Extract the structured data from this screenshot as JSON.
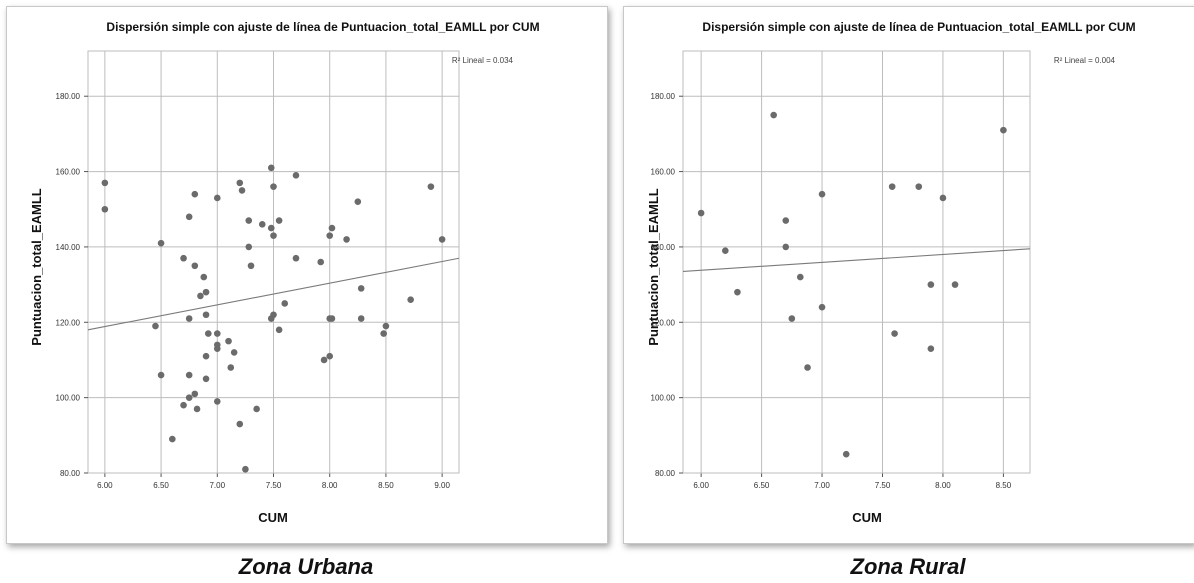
{
  "captions": [
    "Zona Urbana",
    "Zona Rural"
  ],
  "chart_data": [
    {
      "type": "scatter",
      "title": "Dispersión simple con ajuste de línea de Puntuacion_total_EAMLL por CUM",
      "xlabel": "CUM",
      "ylabel": "Puntuacion_total_EAMLL",
      "xlim": [
        5.85,
        9.15
      ],
      "ylim": [
        80,
        192
      ],
      "x_ticks": [
        "6.00",
        "6.50",
        "7.00",
        "7.50",
        "8.00",
        "8.50",
        "9.00"
      ],
      "y_ticks": [
        "80.00",
        "100.00",
        "120.00",
        "140.00",
        "160.00",
        "180.00"
      ],
      "grid": true,
      "r2_label": "R² Lineal = 0.034",
      "fit_line": {
        "x": [
          5.85,
          9.15
        ],
        "y": [
          118,
          137
        ]
      },
      "point_color": "#6b6b6b",
      "points": [
        [
          6.0,
          157
        ],
        [
          6.0,
          150
        ],
        [
          6.45,
          119
        ],
        [
          6.5,
          141
        ],
        [
          6.5,
          106
        ],
        [
          6.6,
          89
        ],
        [
          6.7,
          137
        ],
        [
          6.7,
          98
        ],
        [
          6.75,
          148
        ],
        [
          6.75,
          121
        ],
        [
          6.75,
          106
        ],
        [
          6.75,
          100
        ],
        [
          6.8,
          154
        ],
        [
          6.8,
          135
        ],
        [
          6.8,
          101
        ],
        [
          6.82,
          97
        ],
        [
          6.85,
          127
        ],
        [
          6.88,
          132
        ],
        [
          6.9,
          122
        ],
        [
          6.9,
          128
        ],
        [
          6.9,
          111
        ],
        [
          6.9,
          105
        ],
        [
          6.92,
          117
        ],
        [
          7.0,
          153
        ],
        [
          7.0,
          117
        ],
        [
          7.0,
          114
        ],
        [
          7.0,
          113
        ],
        [
          7.0,
          99
        ],
        [
          7.1,
          115
        ],
        [
          7.12,
          108
        ],
        [
          7.15,
          112
        ],
        [
          7.2,
          157
        ],
        [
          7.22,
          155
        ],
        [
          7.2,
          93
        ],
        [
          7.25,
          81
        ],
        [
          7.28,
          147
        ],
        [
          7.28,
          140
        ],
        [
          7.3,
          135
        ],
        [
          7.35,
          97
        ],
        [
          7.4,
          146
        ],
        [
          7.48,
          161
        ],
        [
          7.48,
          145
        ],
        [
          7.5,
          156
        ],
        [
          7.5,
          143
        ],
        [
          7.5,
          122
        ],
        [
          7.48,
          121
        ],
        [
          7.55,
          147
        ],
        [
          7.55,
          118
        ],
        [
          7.6,
          125
        ],
        [
          7.7,
          159
        ],
        [
          7.7,
          137
        ],
        [
          7.92,
          136
        ],
        [
          7.95,
          110
        ],
        [
          8.0,
          143
        ],
        [
          8.02,
          145
        ],
        [
          8.0,
          121
        ],
        [
          8.02,
          121
        ],
        [
          8.0,
          111
        ],
        [
          8.15,
          142
        ],
        [
          8.25,
          152
        ],
        [
          8.28,
          129
        ],
        [
          8.28,
          121
        ],
        [
          8.48,
          117
        ],
        [
          8.5,
          119
        ],
        [
          8.72,
          126
        ],
        [
          8.9,
          156
        ],
        [
          9.0,
          142
        ]
      ]
    },
    {
      "type": "scatter",
      "title": "Dispersión simple con ajuste de línea de Puntuacion_total_EAMLL por CUM",
      "xlabel": "CUM",
      "ylabel": "Puntuacion_total_EAMLL",
      "xlim": [
        5.85,
        8.72
      ],
      "ylim": [
        80,
        192
      ],
      "x_ticks": [
        "6.00",
        "6.50",
        "7.00",
        "7.50",
        "8.00",
        "8.50"
      ],
      "y_ticks": [
        "80.00",
        "100.00",
        "120.00",
        "140.00",
        "160.00",
        "180.00"
      ],
      "grid": true,
      "r2_label": "R² Lineal = 0.004",
      "fit_line": {
        "x": [
          5.85,
          8.72
        ],
        "y": [
          133.5,
          139.5
        ]
      },
      "point_color": "#6b6b6b",
      "points": [
        [
          6.0,
          149
        ],
        [
          6.2,
          139
        ],
        [
          6.3,
          128
        ],
        [
          6.6,
          175
        ],
        [
          6.7,
          147
        ],
        [
          6.7,
          140
        ],
        [
          6.75,
          121
        ],
        [
          6.82,
          132
        ],
        [
          6.88,
          108
        ],
        [
          7.0,
          154
        ],
        [
          7.0,
          124
        ],
        [
          7.2,
          85
        ],
        [
          7.58,
          156
        ],
        [
          7.6,
          117
        ],
        [
          7.8,
          156
        ],
        [
          7.9,
          130
        ],
        [
          7.9,
          113
        ],
        [
          8.0,
          153
        ],
        [
          8.1,
          130
        ],
        [
          8.5,
          171
        ]
      ]
    }
  ]
}
